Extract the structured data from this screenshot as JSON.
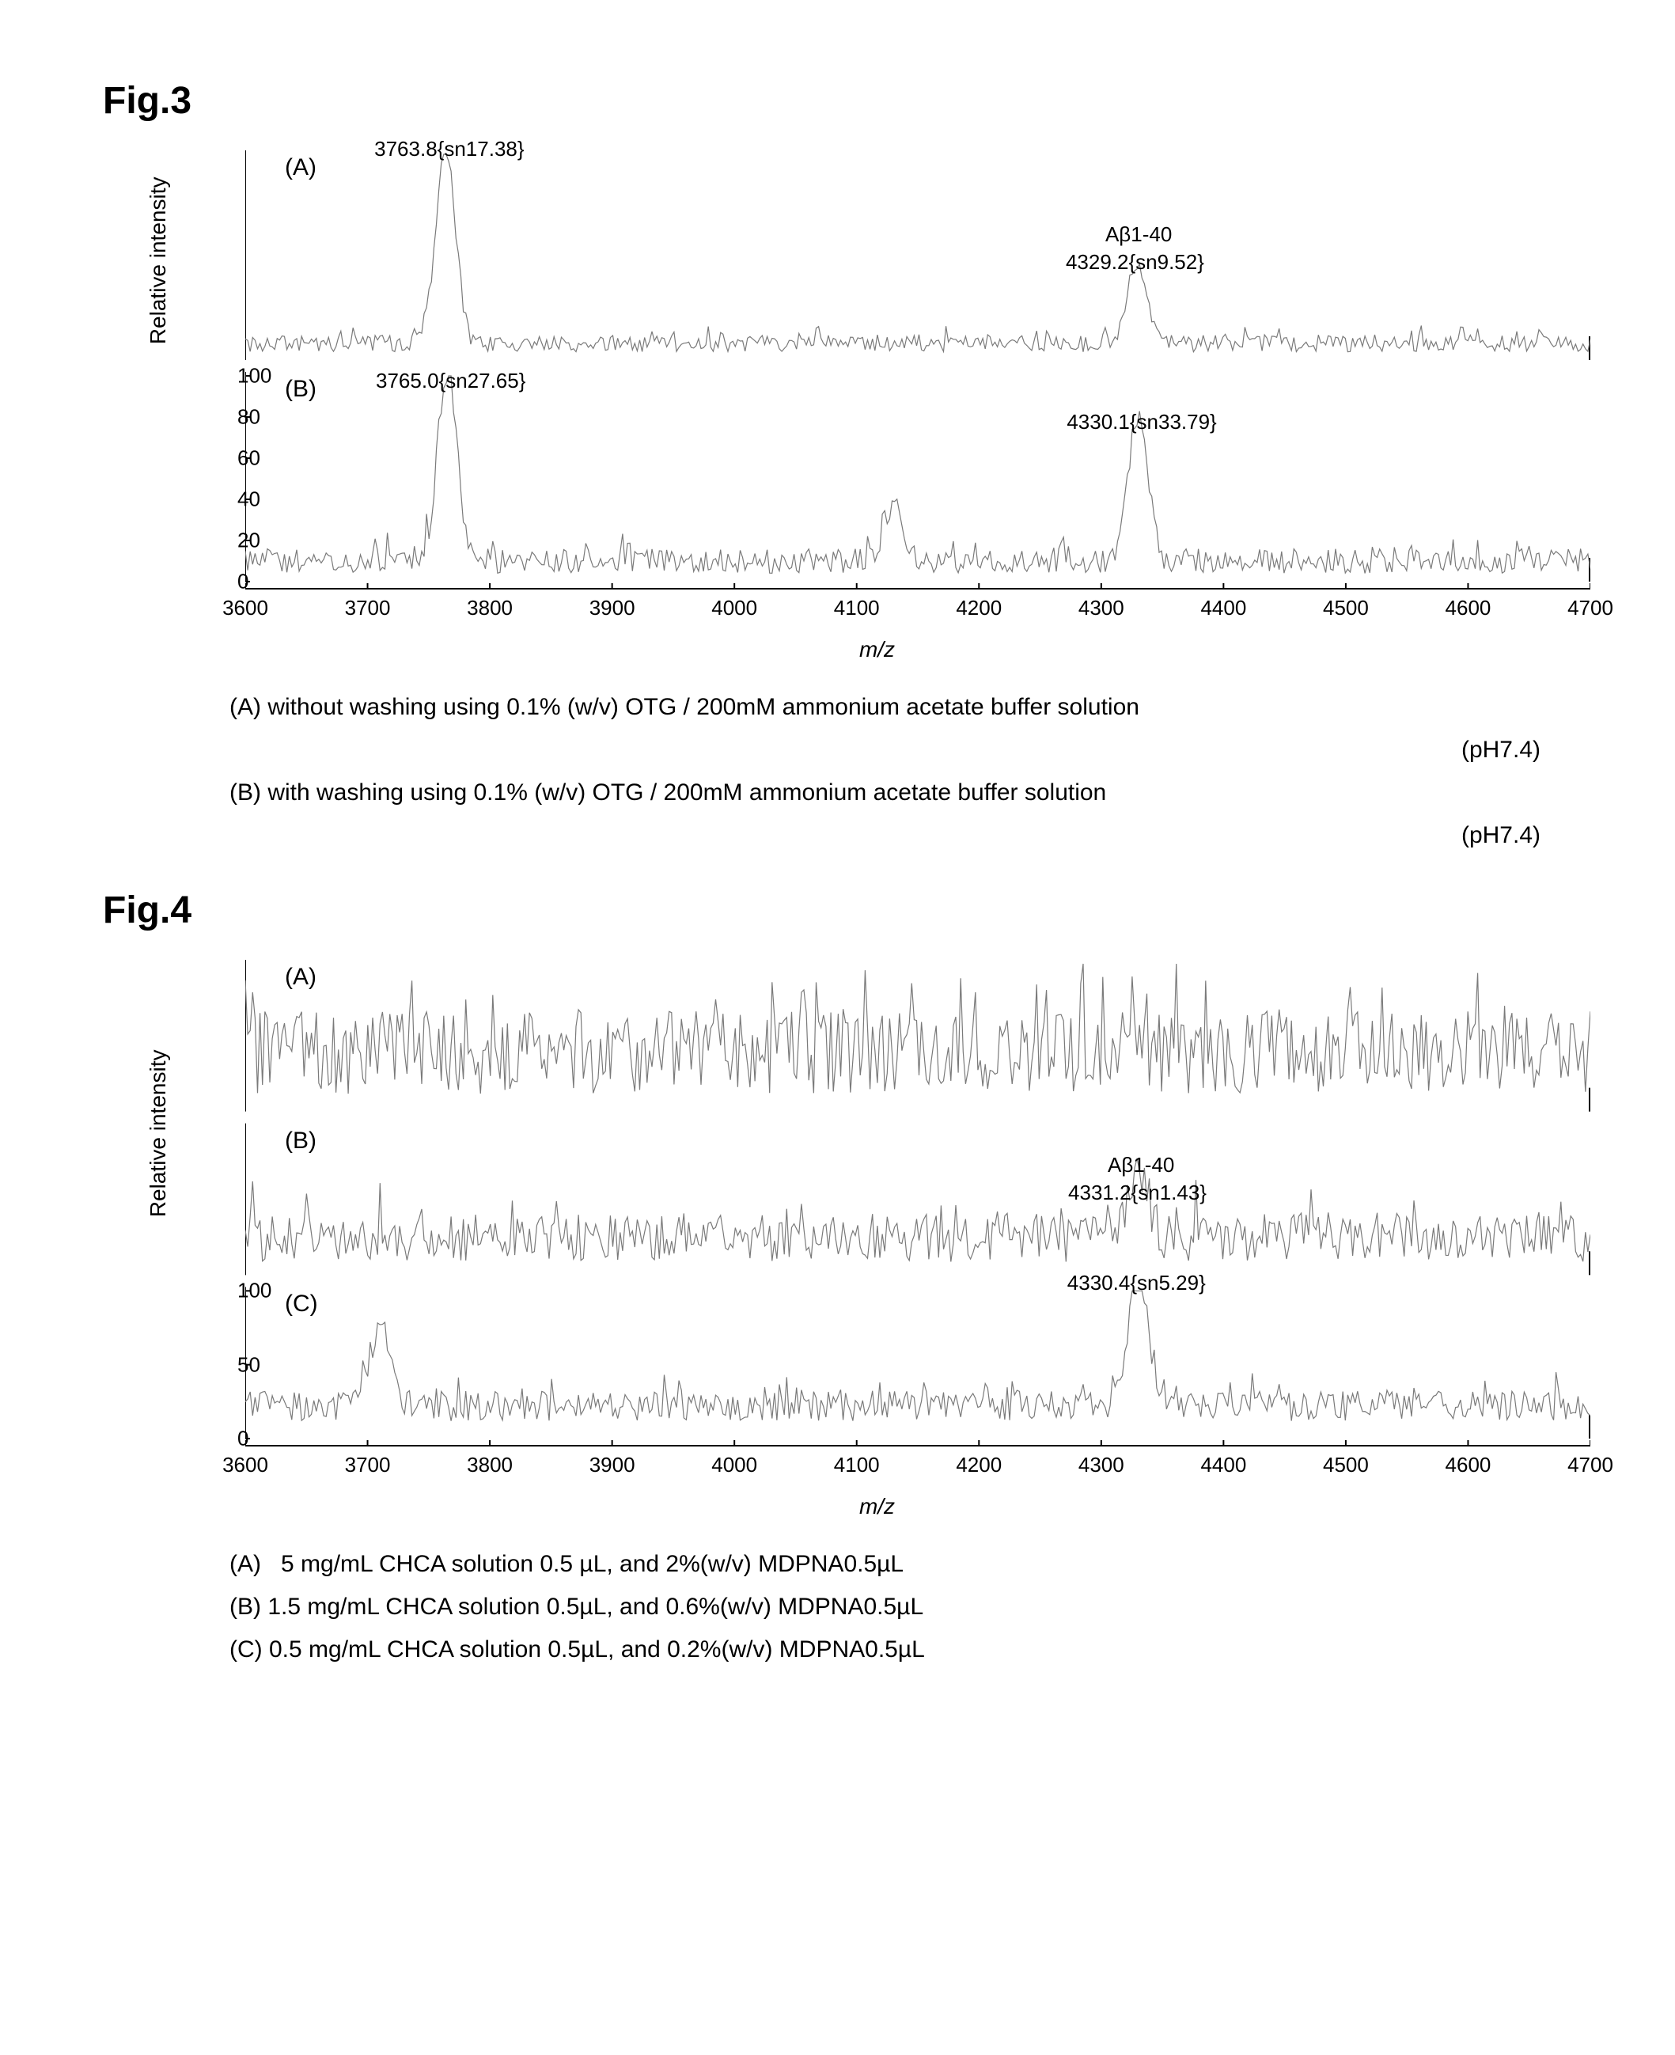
{
  "fig3": {
    "title": "Fig.3",
    "chart": {
      "type": "mass-spectrum",
      "xlim": [
        3600,
        4700
      ],
      "ylim": [
        0,
        100
      ],
      "xtick_step": 100,
      "yticks": [
        0,
        20,
        40,
        60,
        80,
        100
      ],
      "xlabel": "m/z",
      "ylabel": "Relative intensity",
      "plot_color": "#7a7a7a",
      "axis_color": "#000000",
      "background_color": "#ffffff",
      "line_width": 1.2,
      "panels": [
        {
          "letter": "(A)",
          "peaks": [
            {
              "mz": 3763.8,
              "label": "3763.8{sn17.38}",
              "height": 95
            },
            {
              "mz": 4329.2,
              "label": "4329.2{sn9.52}",
              "height": 40,
              "annotation": "Aβ1-40"
            }
          ],
          "baseline": 8,
          "noise": 4
        },
        {
          "letter": "(B)",
          "peaks": [
            {
              "mz": 3765.0,
              "label": "3765.0{sn27.65}",
              "height": 90
            },
            {
              "mz": 4130,
              "label": "",
              "height": 28
            },
            {
              "mz": 4330.1,
              "label": "4330.1{sn33.79}",
              "height": 70
            }
          ],
          "baseline": 10,
          "noise": 6
        }
      ]
    },
    "captions": [
      {
        "prefix": "(A)",
        "text": "without washing using 0.1% (w/v) OTG / 200mM ammonium acetate buffer solution",
        "tail": "(pH7.4)"
      },
      {
        "prefix": "(B)",
        "text": "with washing using 0.1% (w/v) OTG / 200mM ammonium acetate buffer solution",
        "tail": "(pH7.4)"
      }
    ]
  },
  "fig4": {
    "title": "Fig.4",
    "chart": {
      "type": "mass-spectrum",
      "xlim": [
        3600,
        4700
      ],
      "ylim": [
        0,
        100
      ],
      "xtick_step": 100,
      "yticks": [
        0,
        50,
        100
      ],
      "xlabel": "m/z",
      "ylabel": "Relative intensity",
      "plot_color": "#7a7a7a",
      "axis_color": "#000000",
      "background_color": "#ffffff",
      "line_width": 1.2,
      "panels": [
        {
          "letter": "(A)",
          "peaks": [],
          "baseline": 40,
          "noise": 28
        },
        {
          "letter": "(B)",
          "peaks": [
            {
              "mz": 4331.2,
              "label": "4331.2{sn1.43}",
              "height": 45,
              "annotation": "Aβ1-40"
            }
          ],
          "baseline": 25,
          "noise": 16
        },
        {
          "letter": "(C)",
          "peaks": [
            {
              "mz": 3710,
              "label": "",
              "height": 55
            },
            {
              "mz": 4330.4,
              "label": "4330.4{sn5.29}",
              "height": 95
            }
          ],
          "baseline": 22,
          "noise": 10
        }
      ]
    },
    "captions": [
      {
        "prefix": "(A)",
        "text": "5 mg/mL CHCA solution 0.5 µL, and  2%(w/v) MDPNA0.5µL"
      },
      {
        "prefix": "(B)",
        "text": "1.5 mg/mL CHCA solution 0.5µL, and  0.6%(w/v) MDPNA0.5µL"
      },
      {
        "prefix": "(C)",
        "text": "0.5 mg/mL CHCA solution 0.5µL, and  0.2%(w/v) MDPNA0.5µL"
      }
    ]
  }
}
